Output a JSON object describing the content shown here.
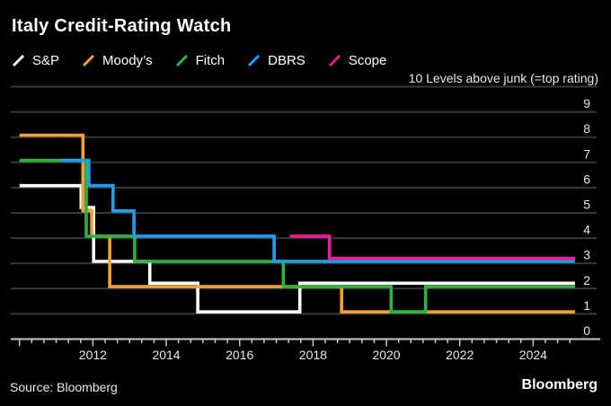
{
  "header": {
    "title": "Italy Credit-Rating Watch",
    "note": "10 Levels above junk (=top rating)"
  },
  "legend": [
    {
      "label": "S&P"
    },
    {
      "label": "Moody’s"
    },
    {
      "label": "Fitch"
    },
    {
      "label": "DBRS"
    },
    {
      "label": "Scope"
    }
  ],
  "footer": {
    "source": "Source: Bloomberg",
    "brand": "Bloomberg"
  },
  "chart_data": {
    "type": "line",
    "step": true,
    "title": "Italy Credit-Rating Watch",
    "subtitle_note": "10 Levels above junk (=top rating)",
    "ylabel": "Levels above junk",
    "x_axis": {
      "range": [
        2010,
        2025.33
      ],
      "labeled_ticks": [
        2012,
        2014,
        2016,
        2018,
        2020,
        2022,
        2024
      ],
      "minor_tick_interval_years": 0.3333
    },
    "y_axis": {
      "range": [
        0,
        10
      ],
      "ticks": [
        0,
        1,
        2,
        3,
        4,
        5,
        6,
        7,
        8,
        9
      ],
      "top_tick_label": "10 Levels above junk (=top rating)"
    },
    "series": [
      {
        "name": "S&P",
        "color": "#FFFFFF",
        "steps": [
          [
            2010.0,
            6
          ],
          [
            2011.68,
            5
          ],
          [
            2012.02,
            3
          ],
          [
            2013.55,
            2
          ],
          [
            2014.86,
            1
          ],
          [
            2017.64,
            2
          ]
        ],
        "end_year": 2025.14
      },
      {
        "name": "Moody’s",
        "color": "#F5A033",
        "steps": [
          [
            2010.0,
            8
          ],
          [
            2011.73,
            5
          ],
          [
            2011.97,
            4
          ],
          [
            2012.46,
            2
          ],
          [
            2018.78,
            1
          ]
        ],
        "end_year": 2025.14
      },
      {
        "name": "Fitch",
        "color": "#2EB340",
        "steps": [
          [
            2010.0,
            7
          ],
          [
            2011.82,
            4
          ],
          [
            2013.14,
            3
          ],
          [
            2017.19,
            2
          ],
          [
            2020.13,
            1
          ],
          [
            2021.07,
            2
          ]
        ],
        "end_year": 2025.14
      },
      {
        "name": "DBRS",
        "color": "#219FEE",
        "steps": [
          [
            2011.13,
            7
          ],
          [
            2011.89,
            6
          ],
          [
            2012.55,
            5
          ],
          [
            2013.12,
            4
          ],
          [
            2016.94,
            3
          ]
        ],
        "end_year": 2025.14
      },
      {
        "name": "Scope",
        "color": "#ED1E95",
        "steps": [
          [
            2017.37,
            4
          ],
          [
            2018.45,
            3
          ]
        ],
        "end_year": 2025.14
      }
    ],
    "colors": {
      "background": "#000000",
      "grid": "#383838",
      "axis": "#C9C9C9",
      "tick_label": "#E9E9E9"
    },
    "legend_position": "top-left",
    "grid": true
  }
}
